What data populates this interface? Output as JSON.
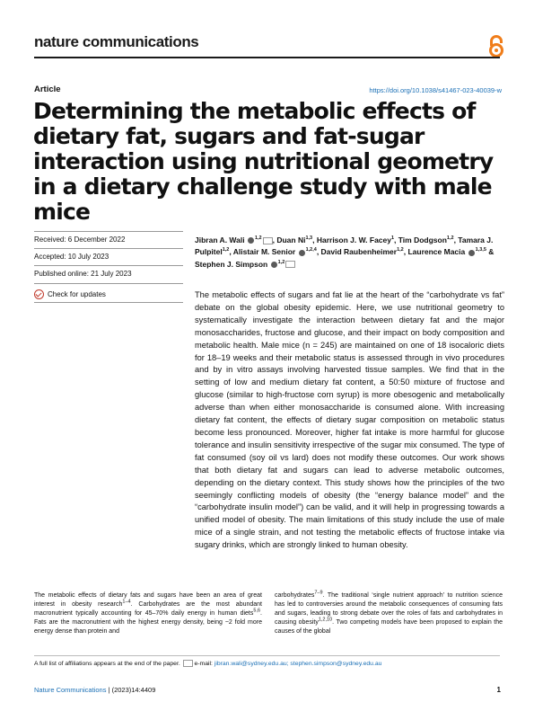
{
  "header": {
    "journal": "nature communications",
    "article_type": "Article",
    "doi": "https://doi.org/10.1038/s41467-023-40039-w"
  },
  "title": "Determining the metabolic effects of dietary fat, sugars and fat-sugar interaction using nutritional geometry in a dietary challenge study with male mice",
  "meta": {
    "received": "Received: 6 December 2022",
    "accepted": "Accepted: 10 July 2023",
    "published": "Published online: 21 July 2023",
    "check_updates": "Check for updates"
  },
  "authors": {
    "a1": "Jibran A. Wali",
    "a1_sup": "1,2",
    "a2": ", Duan Ni",
    "a2_sup": "1,3",
    "a3": ", Harrison J. W. Facey",
    "a3_sup": "1",
    "a4": ", Tim Dodgson",
    "a4_sup": "1,2",
    "a5": ", Tamara J. Pulpitel",
    "a5_sup": "1,2",
    "a6": ", Alistair M. Senior",
    "a6_sup": "1,2,4",
    "a7": ", David Raubenheimer",
    "a7_sup": "1,2",
    "a8": ", Laurence Macia",
    "a8_sup": "1,3,5",
    "a9": " & Stephen J. Simpson",
    "a9_sup": "1,2"
  },
  "abstract": "The metabolic effects of sugars and fat lie at the heart of the “carbohydrate vs fat” debate on the global obesity epidemic. Here, we use nutritional geometry to systematically investigate the interaction between dietary fat and the major monosaccharides, fructose and glucose, and their impact on body composition and metabolic health. Male mice (n = 245) are maintained on one of 18 isocaloric diets for 18–19 weeks and their metabolic status is assessed through in vivo procedures and by in vitro assays involving harvested tissue samples. We find that in the setting of low and medium dietary fat content, a 50:50 mixture of fructose and glucose (similar to high-fructose corn syrup) is more obesogenic and metabolically adverse than when either monosaccharide is consumed alone. With increasing dietary fat content, the effects of dietary sugar composition on metabolic status become less pronounced. Moreover, higher fat intake is more harmful for glucose tolerance and insulin sensitivity irrespective of the sugar mix consumed. The type of fat consumed (soy oil vs lard) does not modify these outcomes. Our work shows that both dietary fat and sugars can lead to adverse metabolic outcomes, depending on the dietary context. This study shows how the principles of the two seemingly conflicting models of obesity (the “energy balance model” and the “carbohydrate insulin model”) can be valid, and it will help in progressing towards a unified model of obesity. The main limitations of this study include the use of male mice of a single strain, and not testing the metabolic effects of fructose intake via sugary drinks, which are strongly linked to human obesity.",
  "body": {
    "left_1": "The metabolic effects of dietary fats and sugars have been an area of great interest in obesity research",
    "left_1_sup": "1–4",
    "left_2": ". Carbohydrates are the most abundant macronutrient typically accounting for 45–70% daily energy in human diets",
    "left_2_sup": "5,6",
    "left_3": ". Fats are the macronutrient with the highest energy density, being ~2 fold more energy dense than protein and",
    "right_1": "carbohydrates",
    "right_1_sup": "7–9",
    "right_2": ". The traditional ‘single nutrient approach’ to nutrition science has led to controversies around the metabolic consequences of consuming fats and sugars, leading to strong debate over the roles of fats and carbohydrates in causing obesity",
    "right_2_sup": "1,2,10",
    "right_3": ". Two competing models have been proposed to explain the causes of the global"
  },
  "footnote": {
    "text": "A full list of affiliations appears at the end of the paper.",
    "email_label": "e-mail:",
    "emails": "jibran.wali@sydney.edu.au; stephen.simpson@sydney.edu.au"
  },
  "footer": {
    "journal": "Nature Communications",
    "citation": "| (2023)14:4409",
    "page": "1"
  },
  "colors": {
    "accent": "#1a6fb5",
    "oa": "#f07d1a"
  },
  "icons": [
    "open-access-icon",
    "orcid-icon",
    "email-icon",
    "check-updates-icon"
  ]
}
